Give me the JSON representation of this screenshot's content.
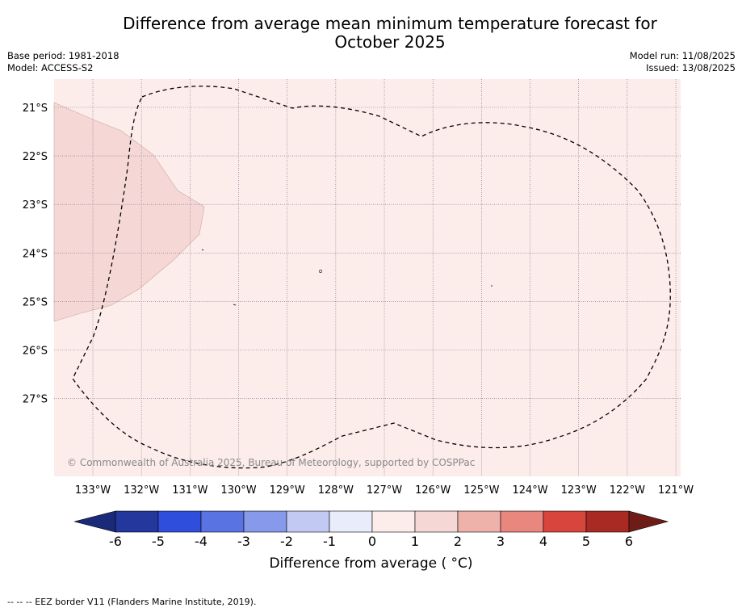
{
  "title_line1": "Difference from average mean minimum temperature forecast for",
  "title_line2": "October 2025",
  "base_period": "Base period: 1981-2018",
  "model": "Model: ACCESS-S2",
  "model_run": "Model run: 11/08/2025",
  "issued": "Issued: 13/08/2025",
  "copyright": "© Commonwealth of Australia 2025, Bureau of Meteorology, supported by COSPPac",
  "latitude_labels": [
    "21°S",
    "22°S",
    "23°S",
    "24°S",
    "25°S",
    "26°S",
    "27°S"
  ],
  "longitude_labels": [
    "133°W",
    "132°W",
    "131°W",
    "130°W",
    "129°W",
    "128°W",
    "127°W",
    "126°W",
    "125°W",
    "124°W",
    "123°W",
    "122°W",
    "121°W"
  ],
  "colorbar": {
    "label": "Difference from average ( °C)",
    "ticks": [
      "-6",
      "-5",
      "-4",
      "-3",
      "-2",
      "-1",
      "0",
      "1",
      "2",
      "3",
      "4",
      "5",
      "6"
    ],
    "colors": [
      "#23379c",
      "#2f4edc",
      "#5a73e3",
      "#8799ea",
      "#c2caf4",
      "#e9ecfb",
      "#fcecea",
      "#f5d8d5",
      "#eeb2ab",
      "#e9867e",
      "#d8453c",
      "#a82a23"
    ],
    "under_color": "#1b2a78",
    "over_color": "#6e1c18"
  },
  "map_colors": {
    "background_anomaly": "#fcecea",
    "region_anomaly": "#f5d8d5"
  },
  "footer": "-- -- -- EEZ border V11 (Flanders Marine Institute, 2019)."
}
